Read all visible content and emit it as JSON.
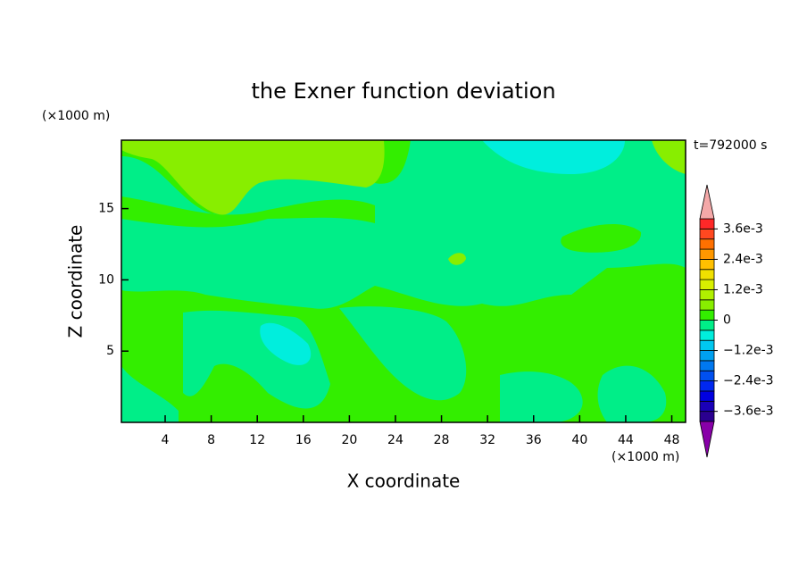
{
  "chart_data": {
    "type": "contour",
    "title": "the Exner function deviation",
    "xlabel": "X coordinate",
    "ylabel": "Z coordinate",
    "xunit": "(×1000 m)",
    "yunit": "(×1000 m)",
    "annotation": "t=792000 s",
    "xlim": [
      0.2,
      49.2
    ],
    "ylim": [
      0,
      19.8
    ],
    "xticks": [
      4,
      8,
      12,
      16,
      20,
      24,
      28,
      32,
      36,
      40,
      44,
      48
    ],
    "yticks": [
      5,
      10,
      15
    ],
    "colorbar": {
      "levels": [
        -0.004,
        -0.0036,
        -0.0032,
        -0.0028,
        -0.0024,
        -0.002,
        -0.0016,
        -0.0012,
        -0.0008,
        -0.0004,
        0,
        0.0004,
        0.0008,
        0.0012,
        0.0016,
        0.002,
        0.0024,
        0.0028,
        0.0032,
        0.0036,
        0.004
      ],
      "colors": [
        "#2a0090",
        "#1a00b8",
        "#0000e0",
        "#0028f0",
        "#0050f0",
        "#0078f0",
        "#00a0f0",
        "#00c8f0",
        "#00eedd",
        "#00ee88",
        "#33ee00",
        "#88ee00",
        "#b0f000",
        "#d8f000",
        "#f0e000",
        "#ffc000",
        "#ff9800",
        "#ff7000",
        "#ff4820",
        "#ff2828"
      ],
      "under_color": "#8800a8",
      "over_color": "#f4a8a8",
      "ticks": [
        {
          "value": 0.0036,
          "label": "3.6e-3"
        },
        {
          "value": 0.0024,
          "label": "2.4e-3"
        },
        {
          "value": 0.0012,
          "label": "1.2e-3"
        },
        0,
        {
          "value": -0.0012,
          "label": "−1.2e-3"
        },
        {
          "value": -0.0024,
          "label": "−2.4e-3"
        },
        {
          "value": -0.0036,
          "label": "−3.6e-3"
        }
      ]
    }
  }
}
